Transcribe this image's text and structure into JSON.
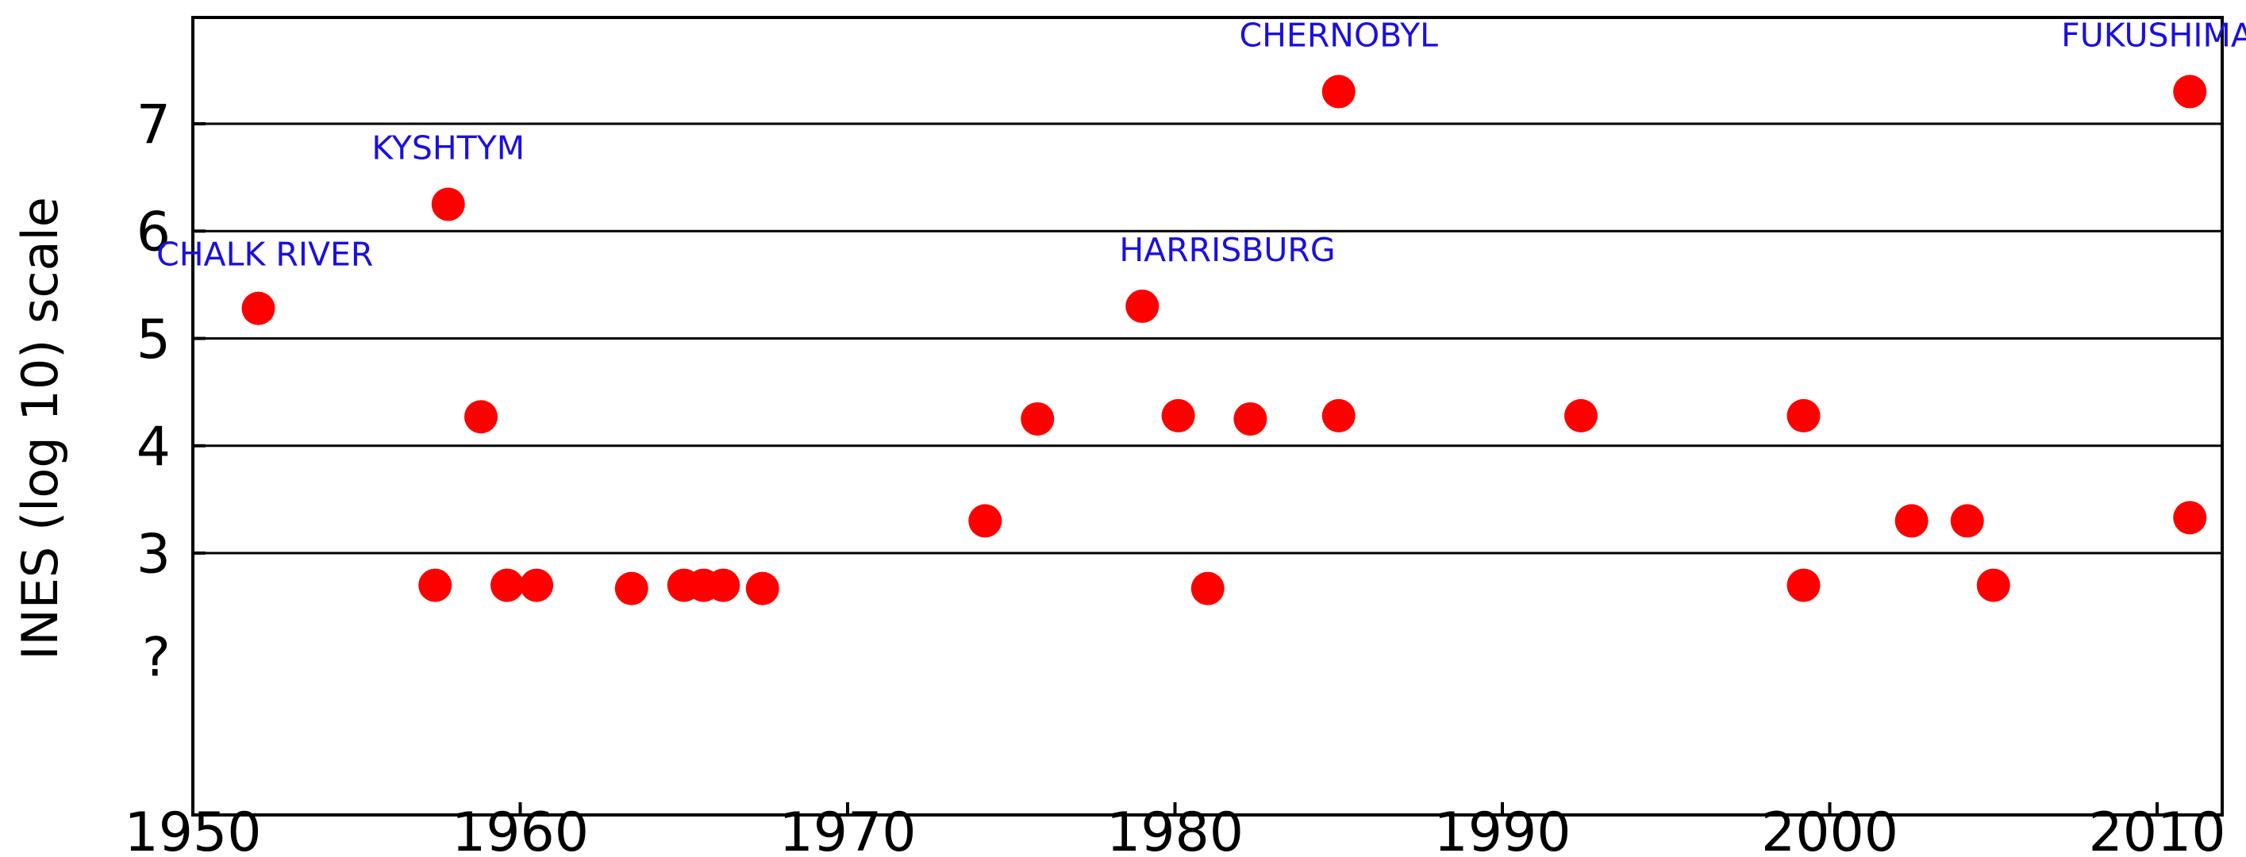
{
  "chart_data": {
    "type": "scatter",
    "title": "",
    "xlabel": "",
    "ylabel": "INES (log 10) scale",
    "xlim": [
      1950,
      2012
    ],
    "ylim": [
      0.8,
      8
    ],
    "x_ticks": [
      1950,
      1960,
      1970,
      1980,
      1990,
      2000,
      2010
    ],
    "y_ticks": [
      {
        "value": 2,
        "label": "?"
      },
      {
        "value": 3,
        "label": "3"
      },
      {
        "value": 4,
        "label": "4"
      },
      {
        "value": 5,
        "label": "5"
      },
      {
        "value": 6,
        "label": "6"
      },
      {
        "value": 7,
        "label": "7"
      }
    ],
    "gridlines_y": [
      3,
      4,
      5,
      6,
      7
    ],
    "grid": true,
    "colors": {
      "point": "#ff0000",
      "annotation": "#1a10e0",
      "axis": "#000000"
    },
    "series": [
      {
        "points": [
          {
            "x": 1952.0,
            "y": 5.28
          },
          {
            "x": 1957.4,
            "y": 2.7
          },
          {
            "x": 1957.8,
            "y": 6.25
          },
          {
            "x": 1958.8,
            "y": 4.27
          },
          {
            "x": 1959.6,
            "y": 2.7
          },
          {
            "x": 1960.5,
            "y": 2.7
          },
          {
            "x": 1963.4,
            "y": 2.67
          },
          {
            "x": 1965.0,
            "y": 2.7
          },
          {
            "x": 1965.6,
            "y": 2.7
          },
          {
            "x": 1966.2,
            "y": 2.7
          },
          {
            "x": 1967.4,
            "y": 2.67
          },
          {
            "x": 1974.2,
            "y": 3.3
          },
          {
            "x": 1975.8,
            "y": 4.25
          },
          {
            "x": 1979.0,
            "y": 5.3
          },
          {
            "x": 1980.1,
            "y": 4.28
          },
          {
            "x": 1981.0,
            "y": 2.67
          },
          {
            "x": 1982.3,
            "y": 4.25
          },
          {
            "x": 1985.0,
            "y": 7.3
          },
          {
            "x": 1985.0,
            "y": 4.28
          },
          {
            "x": 1992.4,
            "y": 4.28
          },
          {
            "x": 1999.2,
            "y": 4.28
          },
          {
            "x": 1999.2,
            "y": 2.7
          },
          {
            "x": 2002.5,
            "y": 3.3
          },
          {
            "x": 2004.2,
            "y": 3.3
          },
          {
            "x": 2005.0,
            "y": 2.7
          },
          {
            "x": 2011.0,
            "y": 7.3
          },
          {
            "x": 2011.0,
            "y": 3.33
          }
        ]
      }
    ],
    "annotations": [
      {
        "text": "CHALK RIVER",
        "x": 1952.2,
        "y": 5.68
      },
      {
        "text": "KYSHTYM",
        "x": 1957.8,
        "y": 6.67
      },
      {
        "text": "HARRISBURG",
        "x": 1981.6,
        "y": 5.72
      },
      {
        "text": "CHERNOBYL",
        "x": 1985.0,
        "y": 7.72
      },
      {
        "text": "FUKUSHIMA",
        "x": 2010.0,
        "y": 7.72
      }
    ]
  }
}
